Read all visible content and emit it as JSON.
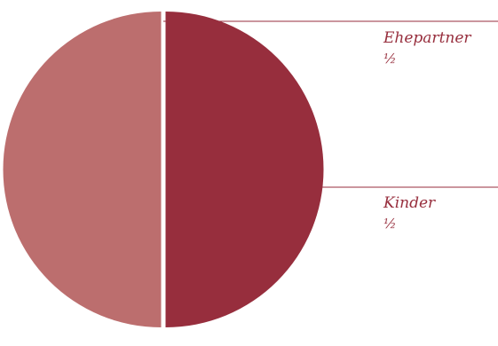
{
  "chart_data": {
    "type": "pie",
    "exploded": true,
    "slices": [
      {
        "label": "Ehepartner",
        "value_text": "½",
        "value": 0.5,
        "color": "#972e3d"
      },
      {
        "label": "Kinder",
        "value_text": "½",
        "value": 0.5,
        "color": "#bc6e6e"
      }
    ],
    "leader_color": "#972e3d",
    "label_color": "#972e3d"
  }
}
